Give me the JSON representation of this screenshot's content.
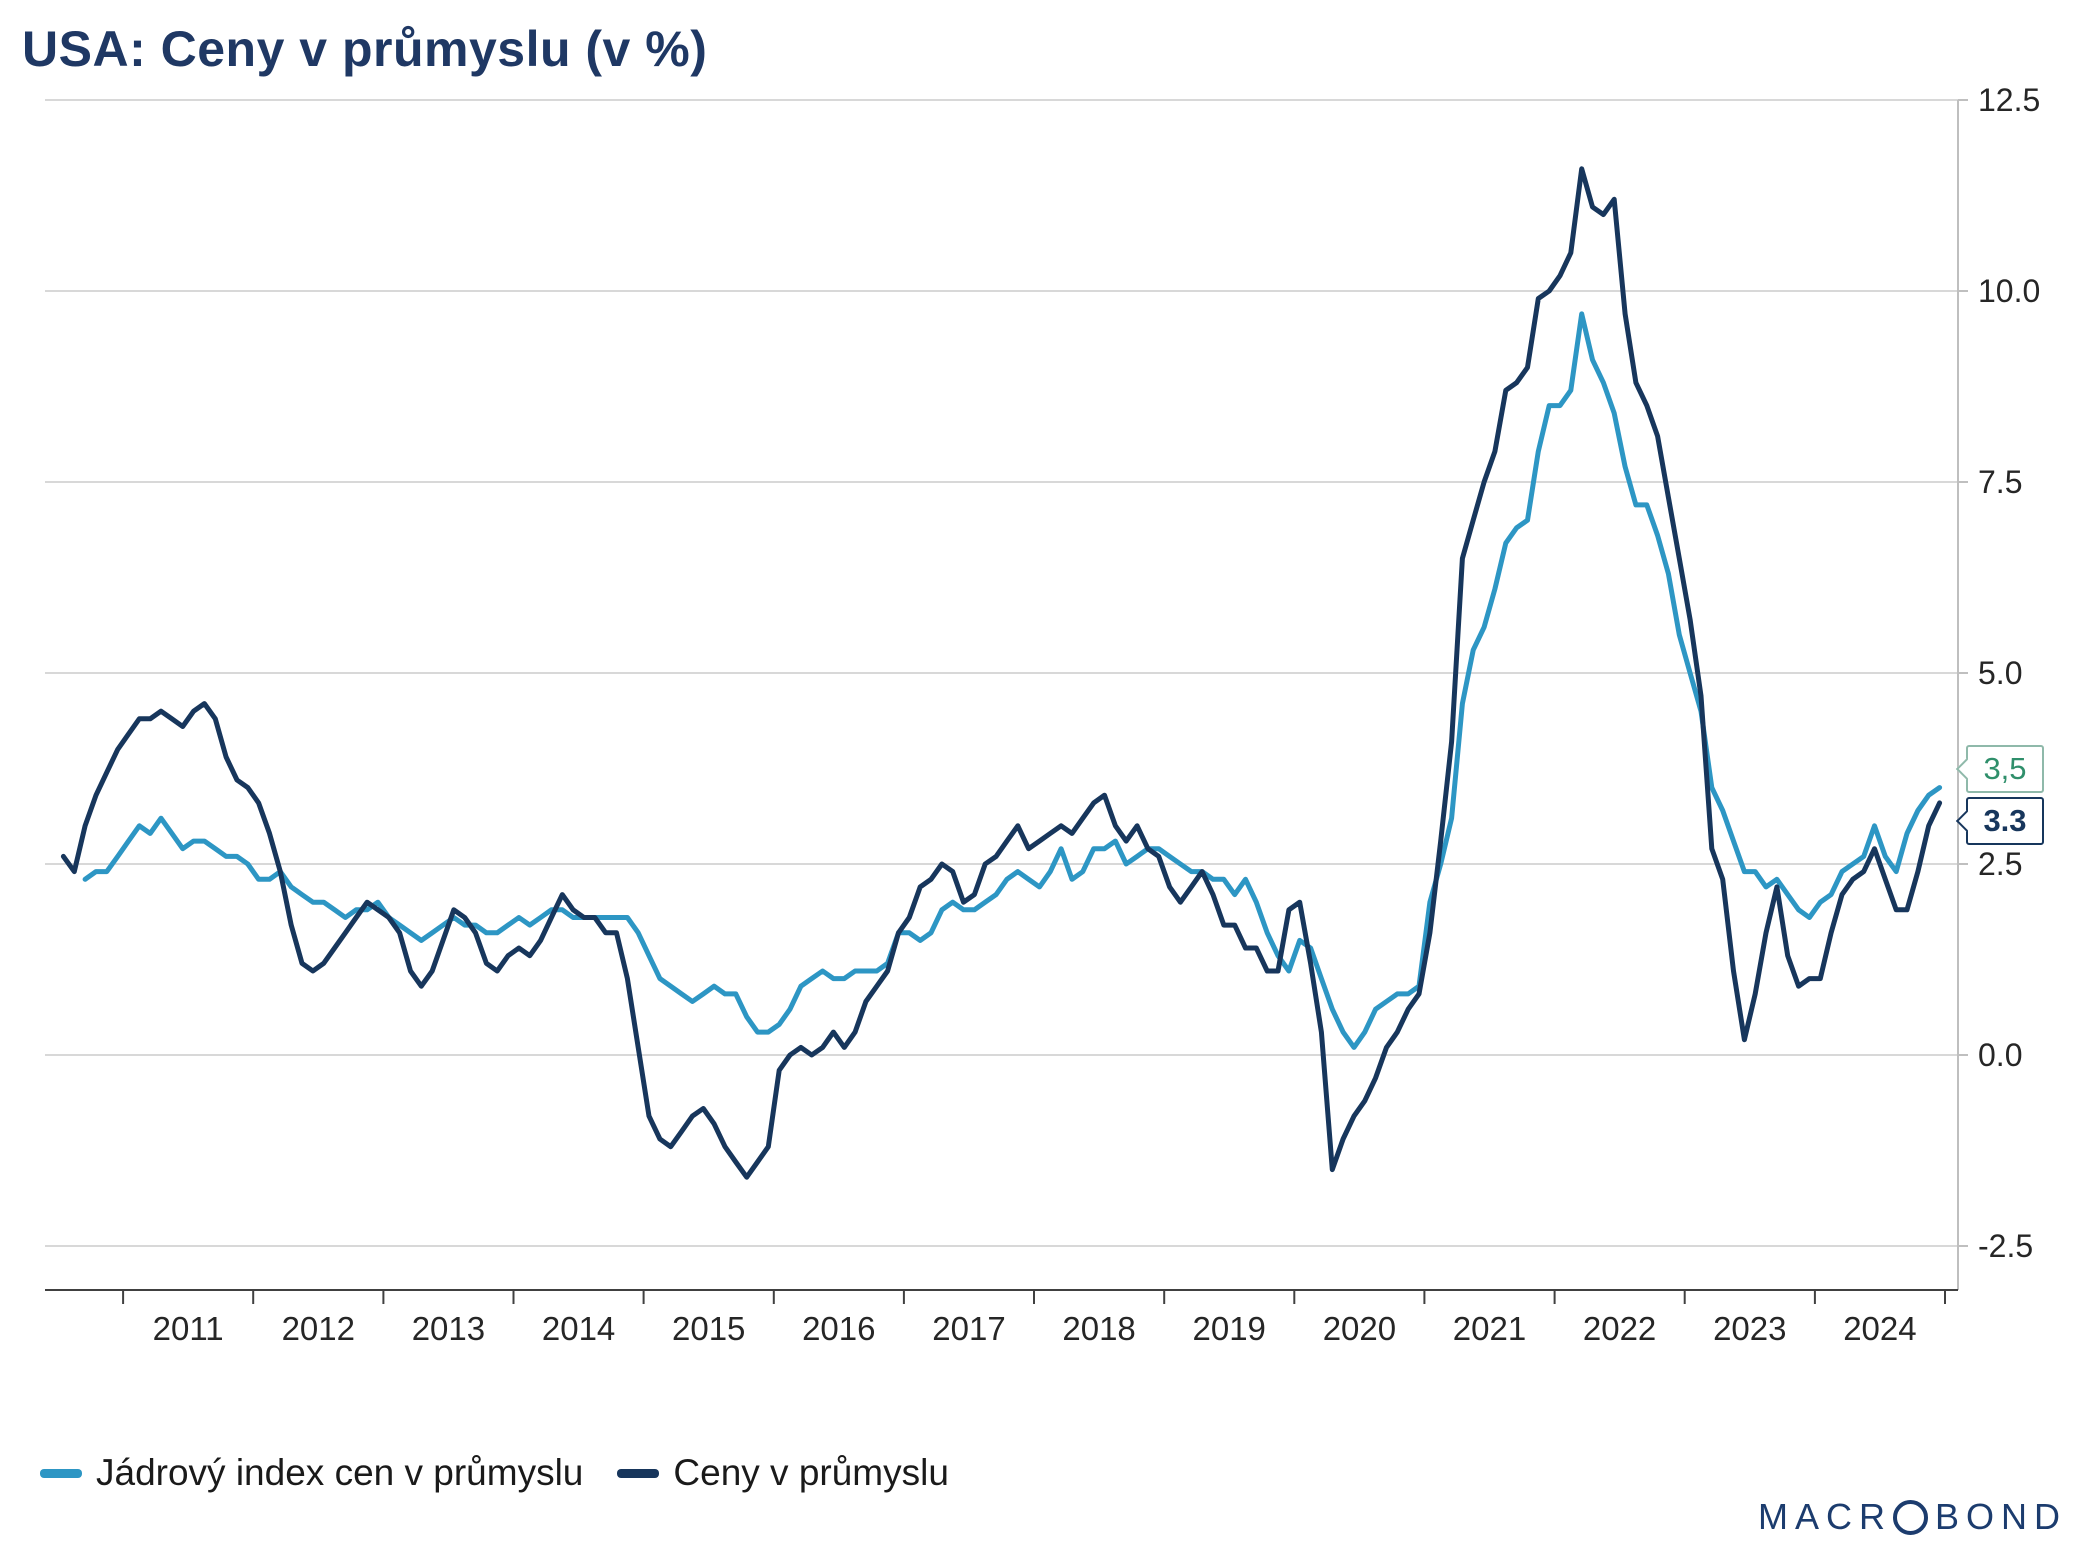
{
  "title": "USA: Ceny v průmyslu (v %)",
  "colors": {
    "core_series": "#2D96C4",
    "ppi_series": "#17365C",
    "title": "#1F3864",
    "grid": "#CCCCCC",
    "right_axis": "#BFBFBF",
    "bottom_axis": "#404040",
    "axis_text": "#262626",
    "end_label_core_text": "#2F8F6B",
    "end_label_ppi_text": "#17365C"
  },
  "y_axis": {
    "ticks": [
      12.5,
      10.0,
      7.5,
      5.0,
      2.5,
      0.0,
      -2.5
    ],
    "tick_labels": [
      "12.5",
      "10.0",
      "7.5",
      "5.0",
      "2.5",
      "0.0",
      "-2.5"
    ],
    "min": -3.1,
    "max": 12.5,
    "side": "right"
  },
  "x_axis": {
    "year_labels": [
      "2011",
      "2012",
      "2013",
      "2014",
      "2015",
      "2016",
      "2017",
      "2018",
      "2019",
      "2020",
      "2021",
      "2022",
      "2023",
      "2024"
    ],
    "start": 2010.4,
    "end": 2025.1
  },
  "end_labels": {
    "core": "3,5",
    "ppi": "3.3"
  },
  "legend": [
    {
      "label": "Jádrový index cen v průmyslu",
      "series": "core"
    },
    {
      "label": "Ceny v průmyslu",
      "series": "ppi"
    }
  ],
  "branding": {
    "logo_text_left": "MACR",
    "logo_text_right": "BOND"
  },
  "chart_data": {
    "type": "line",
    "title": "USA: Ceny v průmyslu (v %)",
    "xlabel": "",
    "ylabel": "%",
    "ylim": [
      -3.1,
      12.5
    ],
    "grid": true,
    "legend_position": "bottom-left",
    "x_unit": "decimal year, monthly observations",
    "series": [
      {
        "id": "core",
        "name": "Jádrový index cen v průmyslu",
        "color": "#2D96C4",
        "start_year": 2010,
        "start_month": 9,
        "end_value_label": "3,5",
        "values": [
          2.3,
          2.4,
          2.4,
          2.6,
          2.8,
          3.0,
          2.9,
          3.1,
          2.9,
          2.7,
          2.8,
          2.8,
          2.7,
          2.6,
          2.6,
          2.5,
          2.3,
          2.3,
          2.4,
          2.2,
          2.1,
          2.0,
          2.0,
          1.9,
          1.8,
          1.9,
          1.9,
          2.0,
          1.8,
          1.7,
          1.6,
          1.5,
          1.6,
          1.7,
          1.8,
          1.7,
          1.7,
          1.6,
          1.6,
          1.7,
          1.8,
          1.7,
          1.8,
          1.9,
          1.9,
          1.8,
          1.8,
          1.8,
          1.8,
          1.8,
          1.8,
          1.6,
          1.3,
          1.0,
          0.9,
          0.8,
          0.7,
          0.8,
          0.9,
          0.8,
          0.8,
          0.5,
          0.3,
          0.3,
          0.4,
          0.6,
          0.9,
          1.0,
          1.1,
          1.0,
          1.0,
          1.1,
          1.1,
          1.1,
          1.2,
          1.6,
          1.6,
          1.5,
          1.6,
          1.9,
          2.0,
          1.9,
          1.9,
          2.0,
          2.1,
          2.3,
          2.4,
          2.3,
          2.2,
          2.4,
          2.7,
          2.3,
          2.4,
          2.7,
          2.7,
          2.8,
          2.5,
          2.6,
          2.7,
          2.7,
          2.6,
          2.5,
          2.4,
          2.4,
          2.3,
          2.3,
          2.1,
          2.3,
          2.0,
          1.6,
          1.3,
          1.1,
          1.5,
          1.4,
          1.0,
          0.6,
          0.3,
          0.1,
          0.3,
          0.6,
          0.7,
          0.8,
          0.8,
          0.9,
          2.0,
          2.5,
          3.1,
          4.6,
          5.3,
          5.6,
          6.1,
          6.7,
          6.9,
          7.0,
          7.9,
          8.5,
          8.5,
          8.7,
          9.7,
          9.1,
          8.8,
          8.4,
          7.7,
          7.2,
          7.2,
          6.8,
          6.3,
          5.5,
          5.0,
          4.5,
          3.5,
          3.2,
          2.8,
          2.4,
          2.4,
          2.2,
          2.3,
          2.1,
          1.9,
          1.8,
          2.0,
          2.1,
          2.4,
          2.5,
          2.6,
          3.0,
          2.6,
          2.4,
          2.9,
          3.2,
          3.4,
          3.5
        ]
      },
      {
        "id": "ppi",
        "name": "Ceny v průmyslu",
        "color": "#17365C",
        "start_year": 2010,
        "start_month": 7,
        "end_value_label": "3.3",
        "values": [
          2.6,
          2.4,
          3.0,
          3.4,
          3.7,
          4.0,
          4.2,
          4.4,
          4.4,
          4.5,
          4.4,
          4.3,
          4.5,
          4.6,
          4.4,
          3.9,
          3.6,
          3.5,
          3.3,
          2.9,
          2.4,
          1.7,
          1.2,
          1.1,
          1.2,
          1.4,
          1.6,
          1.8,
          2.0,
          1.9,
          1.8,
          1.6,
          1.1,
          0.9,
          1.1,
          1.5,
          1.9,
          1.8,
          1.6,
          1.2,
          1.1,
          1.3,
          1.4,
          1.3,
          1.5,
          1.8,
          2.1,
          1.9,
          1.8,
          1.8,
          1.6,
          1.6,
          1.0,
          0.1,
          -0.8,
          -1.1,
          -1.2,
          -1.0,
          -0.8,
          -0.7,
          -0.9,
          -1.2,
          -1.4,
          -1.6,
          -1.4,
          -1.2,
          -0.2,
          0.0,
          0.1,
          0.0,
          0.1,
          0.3,
          0.1,
          0.3,
          0.7,
          0.9,
          1.1,
          1.6,
          1.8,
          2.2,
          2.3,
          2.5,
          2.4,
          2.0,
          2.1,
          2.5,
          2.6,
          2.8,
          3.0,
          2.7,
          2.8,
          2.9,
          3.0,
          2.9,
          3.1,
          3.3,
          3.4,
          3.0,
          2.8,
          3.0,
          2.7,
          2.6,
          2.2,
          2.0,
          2.2,
          2.4,
          2.1,
          1.7,
          1.7,
          1.4,
          1.4,
          1.1,
          1.1,
          1.9,
          2.0,
          1.2,
          0.3,
          -1.5,
          -1.1,
          -0.8,
          -0.6,
          -0.3,
          0.1,
          0.3,
          0.6,
          0.8,
          1.6,
          2.8,
          4.1,
          6.5,
          7.0,
          7.5,
          7.9,
          8.7,
          8.8,
          9.0,
          9.9,
          10.0,
          10.2,
          10.5,
          11.6,
          11.1,
          11.0,
          11.2,
          9.7,
          8.8,
          8.5,
          8.1,
          7.3,
          6.5,
          5.7,
          4.7,
          2.7,
          2.3,
          1.1,
          0.2,
          0.8,
          1.6,
          2.2,
          1.3,
          0.9,
          1.0,
          1.0,
          1.6,
          2.1,
          2.3,
          2.4,
          2.7,
          2.3,
          1.9,
          1.9,
          2.4,
          3.0,
          3.3
        ]
      }
    ]
  }
}
